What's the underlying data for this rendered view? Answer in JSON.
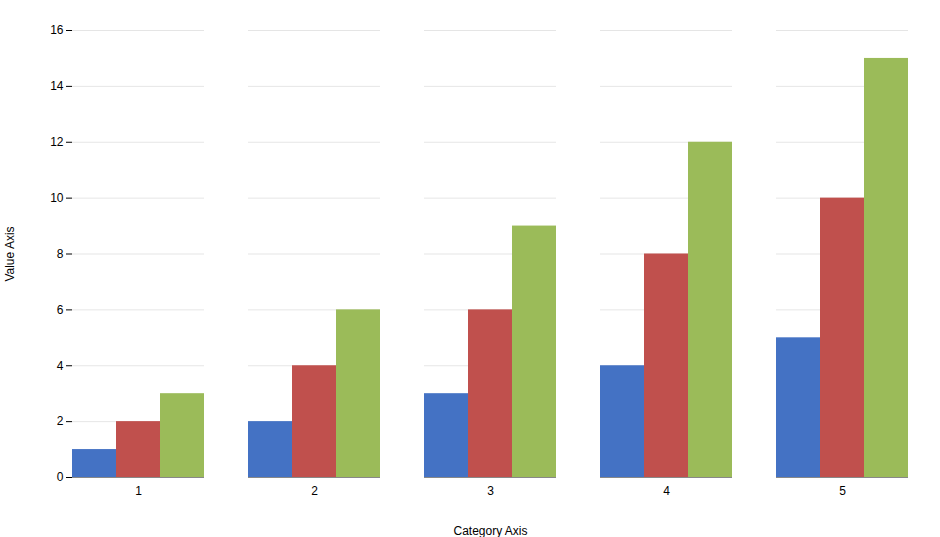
{
  "chart_data": {
    "type": "bar",
    "xlabel": "Category Axis",
    "ylabel": "Value Axis",
    "categories": [
      "1",
      "2",
      "3",
      "4",
      "5"
    ],
    "series": [
      {
        "color": "#4472C4",
        "values": [
          1,
          2,
          3,
          4,
          5
        ]
      },
      {
        "color": "#C0504D",
        "values": [
          2,
          4,
          6,
          8,
          10
        ]
      },
      {
        "color": "#9BBB59",
        "values": [
          3,
          6,
          9,
          12,
          15
        ]
      }
    ],
    "ylim": [
      0,
      16
    ],
    "yticks": [
      0,
      2,
      4,
      6,
      8,
      10,
      12,
      14,
      16
    ],
    "grid": true
  }
}
